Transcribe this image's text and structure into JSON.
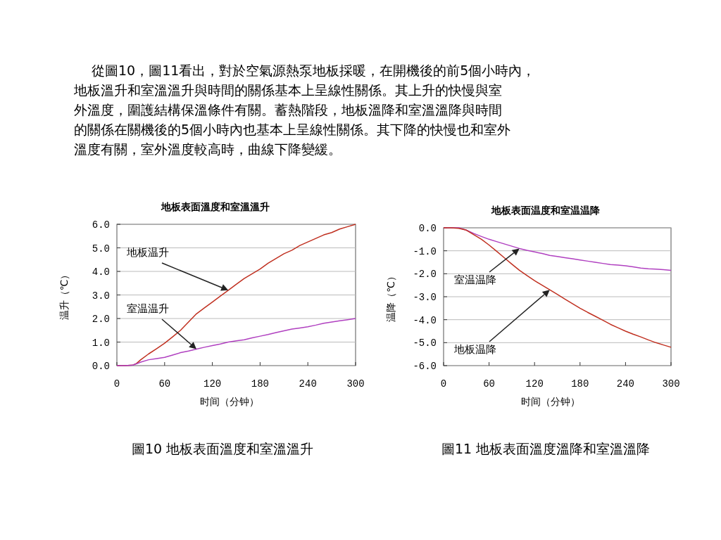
{
  "chart_data": [
    {
      "type": "line",
      "title": "地板表面溫度和室溫溫升",
      "xlabel": "时间（分钟）",
      "ylabel": "温升（℃）",
      "x": [
        0,
        10,
        20,
        25,
        30,
        40,
        50,
        60,
        70,
        80,
        90,
        100,
        110,
        120,
        130,
        140,
        150,
        160,
        170,
        180,
        190,
        200,
        210,
        220,
        230,
        240,
        250,
        260,
        270,
        280,
        290,
        300
      ],
      "xlim": [
        0,
        300
      ],
      "xticks": [
        0,
        60,
        120,
        180,
        240,
        300
      ],
      "ylim": [
        0,
        6
      ],
      "yticks": [
        {
          "value": 0,
          "label": "0.0"
        },
        {
          "value": 1,
          "label": "1.0"
        },
        {
          "value": 2,
          "label": "2.0"
        },
        {
          "value": 3,
          "label": "3.0"
        },
        {
          "value": 4,
          "label": "4.0"
        },
        {
          "value": 5,
          "label": "5.0"
        },
        {
          "value": 6,
          "label": "6.0"
        }
      ],
      "grid": "y",
      "series": [
        {
          "color": "#c03020",
          "values": [
            0,
            0,
            0.02,
            0.1,
            0.25,
            0.5,
            0.72,
            0.95,
            1.22,
            1.5,
            1.85,
            2.2,
            2.45,
            2.7,
            2.95,
            3.2,
            3.45,
            3.7,
            3.9,
            4.1,
            4.35,
            4.55,
            4.75,
            4.9,
            5.1,
            5.25,
            5.4,
            5.55,
            5.65,
            5.8,
            5.9,
            6.0
          ]
        },
        {
          "color": "#b040c0",
          "values": [
            0,
            0,
            0.02,
            0.08,
            0.15,
            0.25,
            0.3,
            0.35,
            0.45,
            0.55,
            0.62,
            0.7,
            0.78,
            0.85,
            0.92,
            1.0,
            1.05,
            1.1,
            1.18,
            1.25,
            1.32,
            1.4,
            1.48,
            1.55,
            1.6,
            1.65,
            1.72,
            1.8,
            1.85,
            1.9,
            1.95,
            2.0
          ]
        }
      ],
      "annotations": [
        "地板温升",
        "室温温升",
        "從圖10，圖11看出，對於空氣源熱泵地板採暖，在開機後的前5個小時內，",
        "地板溫升和室溫溫升與時間的關係基本上呈線性關係。其上升的快慢與室",
        "外溫度，圍護結構保溫條件有關。蓄熱階段，地板溫降和室溫溫降與時間",
        "的關係在關機後的5個小時內也基本上呈線性關係。其下降的快慢也和室外",
        "溫度有關，室外溫度較高時，曲線下降變緩。",
        "圖10 地板表面溫度和室溫溫升"
      ]
    },
    {
      "type": "line",
      "title": "地板表面温度和室温温降",
      "xlabel": "时间（分钟）",
      "ylabel": "温降（℃）",
      "x": [
        0,
        10,
        20,
        30,
        40,
        50,
        60,
        70,
        80,
        90,
        100,
        110,
        120,
        130,
        140,
        150,
        160,
        170,
        180,
        190,
        200,
        210,
        220,
        230,
        240,
        250,
        260,
        270,
        280,
        290,
        300
      ],
      "xlim": [
        0,
        300
      ],
      "xticks": [
        0,
        60,
        120,
        180,
        240,
        300
      ],
      "ylim": [
        -6,
        0
      ],
      "yticks": [
        {
          "value": 0,
          "label": "0.0"
        },
        {
          "value": -1,
          "label": "-1.0"
        },
        {
          "value": -2,
          "label": "-2.0"
        },
        {
          "value": -3,
          "label": "-3.0"
        },
        {
          "value": -4,
          "label": "-4.0"
        },
        {
          "value": -5,
          "label": "-5.0"
        },
        {
          "value": -6,
          "label": "-6.0"
        }
      ],
      "grid": "y",
      "series": [
        {
          "color": "#b040c0",
          "values": [
            0,
            0,
            0,
            -0.1,
            -0.25,
            -0.38,
            -0.5,
            -0.6,
            -0.7,
            -0.8,
            -0.9,
            -0.98,
            -1.05,
            -1.12,
            -1.2,
            -1.25,
            -1.3,
            -1.35,
            -1.4,
            -1.45,
            -1.5,
            -1.55,
            -1.6,
            -1.62,
            -1.65,
            -1.7,
            -1.75,
            -1.78,
            -1.8,
            -1.82,
            -1.85
          ]
        },
        {
          "color": "#c03020",
          "values": [
            0,
            0,
            -0.02,
            -0.1,
            -0.3,
            -0.5,
            -0.75,
            -1.02,
            -1.3,
            -1.58,
            -1.85,
            -2.08,
            -2.3,
            -2.5,
            -2.7,
            -2.9,
            -3.1,
            -3.3,
            -3.5,
            -3.68,
            -3.85,
            -4.02,
            -4.2,
            -4.35,
            -4.5,
            -4.63,
            -4.75,
            -4.88,
            -5.0,
            -5.1,
            -5.2
          ]
        }
      ],
      "annotations": [
        "室温温降",
        "地板温降",
        "圖11 地板表面溫度溫降和室溫溫降"
      ]
    }
  ]
}
